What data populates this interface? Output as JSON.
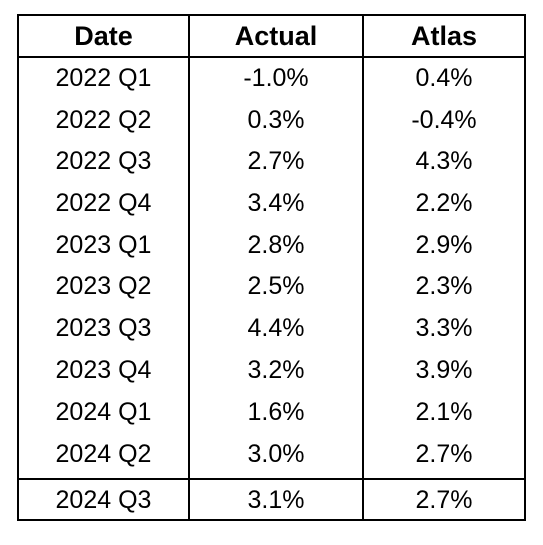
{
  "chart_data": {
    "type": "table",
    "columns": [
      "Date",
      "Actual",
      "Atlas"
    ],
    "rows": [
      [
        "2022 Q1",
        "-1.0%",
        "0.4%"
      ],
      [
        "2022 Q2",
        "0.3%",
        "-0.4%"
      ],
      [
        "2022 Q3",
        "2.7%",
        "4.3%"
      ],
      [
        "2022 Q4",
        "3.4%",
        "2.2%"
      ],
      [
        "2023 Q1",
        "2.8%",
        "2.9%"
      ],
      [
        "2023 Q2",
        "2.5%",
        "2.3%"
      ],
      [
        "2023 Q3",
        "4.4%",
        "3.3%"
      ],
      [
        "2023 Q4",
        "3.2%",
        "3.9%"
      ],
      [
        "2024 Q1",
        "1.6%",
        "2.1%"
      ],
      [
        "2024 Q2",
        "3.0%",
        "2.7%"
      ],
      [
        "2024 Q3",
        "3.1%",
        "2.7%"
      ]
    ],
    "series": [
      {
        "name": "Actual",
        "values": [
          -1.0,
          0.3,
          2.7,
          3.4,
          2.8,
          2.5,
          4.4,
          3.2,
          1.6,
          3.0,
          3.1
        ]
      },
      {
        "name": "Atlas",
        "values": [
          0.4,
          -0.4,
          4.3,
          2.2,
          2.9,
          2.3,
          3.3,
          3.9,
          2.1,
          2.7,
          2.7
        ]
      }
    ],
    "categories": [
      "2022 Q1",
      "2022 Q2",
      "2022 Q3",
      "2022 Q4",
      "2023 Q1",
      "2023 Q2",
      "2023 Q3",
      "2023 Q4",
      "2024 Q1",
      "2024 Q2",
      "2024 Q3"
    ]
  },
  "colors": {
    "border": "#000000",
    "background": "#ffffff",
    "text": "#000000"
  }
}
